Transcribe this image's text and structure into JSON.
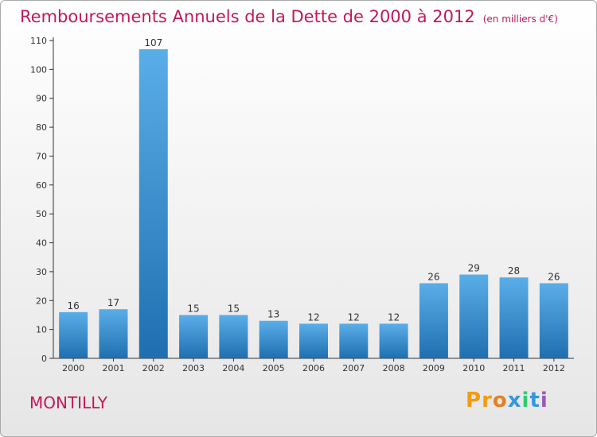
{
  "header": {
    "title": "Remboursements Annuels de la Dette de 2000 à 2012",
    "unit": "(en milliers d'€)"
  },
  "footer": {
    "city": "MONTILLY",
    "logo": "Proxiti"
  },
  "colors": {
    "title": "#c2185b",
    "bar_light": "#5aaee8",
    "bar_dark": "#1f6fb0",
    "logo_letters": [
      "#f39c12",
      "#f39c12",
      "#e67e22",
      "#3498db",
      "#2ecc71",
      "#3498db",
      "#9b59b6"
    ]
  },
  "chart_data": {
    "type": "bar",
    "title": "Remboursements Annuels de la Dette de 2000 à 2012",
    "subtitle": "(en milliers d'€)",
    "xlabel": "",
    "ylabel": "",
    "categories": [
      "2000",
      "2001",
      "2002",
      "2003",
      "2004",
      "2005",
      "2006",
      "2007",
      "2008",
      "2009",
      "2010",
      "2011",
      "2012"
    ],
    "values": [
      16,
      17,
      107,
      15,
      15,
      13,
      12,
      12,
      12,
      26,
      29,
      28,
      26
    ],
    "ylim": [
      0,
      110
    ],
    "yticks": [
      0,
      10,
      20,
      30,
      40,
      50,
      60,
      70,
      80,
      90,
      100,
      110
    ],
    "grid": false,
    "data_labels": true
  }
}
